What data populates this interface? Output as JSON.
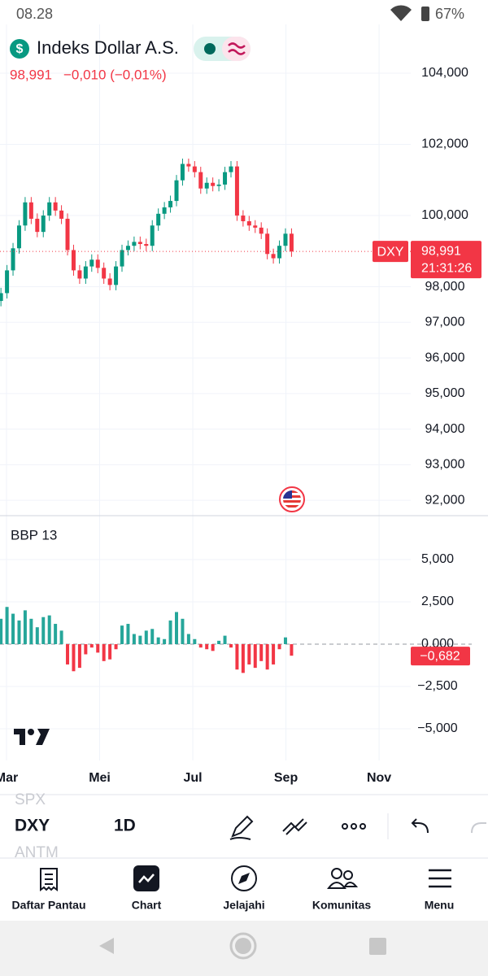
{
  "status_bar": {
    "time": "08.28",
    "battery": "67%"
  },
  "header": {
    "logo_symbol": "$",
    "title": "Indeks Dollar A.S.",
    "price": "98,991",
    "change": "−0,010 (−0,01%)"
  },
  "chart_data": [
    {
      "type": "candlestick",
      "symbol": "DXY",
      "last_price_label": "98,991",
      "countdown": "21:31:26",
      "up_color": "#089981",
      "down_color": "#f23645",
      "grid": true,
      "x": [
        2.88,
        3.01,
        3.14,
        3.27,
        3.4,
        3.53,
        3.66,
        3.79,
        3.92,
        4.05,
        4.18,
        4.31,
        4.44,
        4.57,
        4.7,
        4.83,
        4.96,
        5.09,
        5.22,
        5.35,
        5.48,
        5.61,
        5.74,
        5.87,
        6.0,
        6.13,
        6.26,
        6.39,
        6.52,
        6.65,
        6.78,
        6.91,
        7.04,
        7.17,
        7.3,
        7.43,
        7.56,
        7.69,
        7.82,
        7.95,
        8.08,
        8.21,
        8.34,
        8.47,
        8.6,
        8.73,
        8.86,
        8.99,
        9.12
      ],
      "open": [
        97.6,
        97.82,
        98.46,
        99.08,
        99.72,
        100.37,
        99.91,
        99.54,
        100.0,
        100.37,
        100.14,
        99.91,
        99.03,
        98.46,
        98.23,
        98.57,
        98.76,
        98.53,
        98.23,
        98.05,
        98.57,
        99.03,
        99.15,
        99.26,
        99.2,
        99.15,
        99.72,
        100.05,
        100.23,
        100.41,
        100.99,
        101.45,
        101.38,
        101.22,
        100.76,
        100.92,
        100.83,
        100.87,
        101.22,
        101.38,
        100.0,
        99.84,
        99.72,
        99.66,
        99.49,
        98.92,
        98.8,
        99.15,
        99.49
      ],
      "high": [
        97.97,
        98.61,
        99.23,
        99.87,
        100.52,
        100.52,
        100.06,
        100.15,
        100.52,
        100.52,
        100.29,
        100.06,
        99.18,
        98.61,
        98.72,
        98.91,
        98.91,
        98.68,
        98.38,
        98.72,
        99.18,
        99.3,
        99.41,
        99.41,
        99.35,
        99.87,
        100.2,
        100.38,
        100.56,
        101.14,
        101.6,
        101.6,
        101.53,
        101.37,
        101.07,
        101.07,
        101.02,
        101.37,
        101.53,
        101.53,
        100.15,
        99.99,
        99.87,
        99.81,
        99.64,
        99.07,
        99.3,
        99.64,
        99.64
      ],
      "low": [
        97.45,
        97.67,
        98.31,
        98.93,
        99.57,
        99.76,
        99.39,
        99.39,
        99.85,
        99.99,
        99.76,
        98.88,
        98.31,
        98.08,
        98.08,
        98.42,
        98.38,
        98.08,
        97.9,
        97.9,
        98.42,
        98.88,
        99.0,
        99.05,
        99.0,
        99.0,
        99.57,
        99.9,
        100.08,
        100.26,
        100.84,
        101.23,
        101.07,
        100.61,
        100.61,
        100.68,
        100.68,
        100.72,
        101.07,
        99.85,
        99.69,
        99.57,
        99.51,
        99.34,
        98.77,
        98.65,
        98.65,
        99.0,
        98.84
      ],
      "close": [
        97.82,
        98.46,
        99.08,
        99.72,
        100.37,
        99.91,
        99.54,
        100.0,
        100.37,
        100.14,
        99.91,
        99.03,
        98.46,
        98.23,
        98.57,
        98.76,
        98.53,
        98.23,
        98.05,
        98.57,
        99.03,
        99.15,
        99.26,
        99.2,
        99.15,
        99.72,
        100.05,
        100.23,
        100.41,
        100.99,
        101.45,
        101.38,
        101.22,
        100.76,
        100.92,
        100.83,
        100.87,
        101.22,
        101.38,
        100.0,
        99.84,
        99.72,
        99.66,
        99.49,
        98.92,
        98.8,
        99.15,
        99.49,
        98.991
      ],
      "xlim": [
        2.86,
        11.68
      ],
      "xticks": [
        {
          "value": 3,
          "label": "Mar"
        },
        {
          "value": 5,
          "label": "Mei"
        },
        {
          "value": 7,
          "label": "Jul"
        },
        {
          "value": 9,
          "label": "Sep"
        },
        {
          "value": 11,
          "label": "Nov"
        }
      ],
      "ylim": [
        91.66,
        105.37
      ],
      "yticks": [
        {
          "value": 104,
          "label": "104,000"
        },
        {
          "value": 102,
          "label": "102,000"
        },
        {
          "value": 100,
          "label": "100,000"
        },
        {
          "value": 98,
          "label": "98,000"
        },
        {
          "value": 97,
          "label": "97,000"
        },
        {
          "value": 96,
          "label": "96,000"
        },
        {
          "value": 95,
          "label": "95,000"
        },
        {
          "value": 94,
          "label": "94,000"
        },
        {
          "value": 93,
          "label": "93,000"
        },
        {
          "value": 92,
          "label": "92,000"
        }
      ]
    },
    {
      "type": "bar",
      "title": "BBP 13",
      "up_color": "#26a69a",
      "down_color": "#f23645",
      "last_value_label": "−0,682",
      "x": [
        2.88,
        3.01,
        3.14,
        3.27,
        3.4,
        3.53,
        3.66,
        3.79,
        3.92,
        4.05,
        4.18,
        4.31,
        4.44,
        4.57,
        4.7,
        4.83,
        4.96,
        5.09,
        5.22,
        5.35,
        5.48,
        5.61,
        5.74,
        5.87,
        6.0,
        6.13,
        6.26,
        6.39,
        6.52,
        6.65,
        6.78,
        6.91,
        7.04,
        7.17,
        7.3,
        7.43,
        7.56,
        7.69,
        7.82,
        7.95,
        8.08,
        8.21,
        8.34,
        8.47,
        8.6,
        8.73,
        8.86,
        8.99,
        9.12
      ],
      "values": [
        1.5,
        2.2,
        1.8,
        1.4,
        2.0,
        1.5,
        1.0,
        1.6,
        1.7,
        1.2,
        0.8,
        -1.2,
        -1.6,
        -1.4,
        -0.6,
        -0.2,
        -0.5,
        -1.0,
        -0.9,
        -0.3,
        1.1,
        1.2,
        0.6,
        0.5,
        0.8,
        0.9,
        0.4,
        0.3,
        1.4,
        1.9,
        1.5,
        0.6,
        0.3,
        -0.2,
        -0.3,
        -0.4,
        0.2,
        0.5,
        -0.2,
        -1.5,
        -1.7,
        -1.2,
        -1.4,
        -1.0,
        -1.5,
        -1.2,
        -0.3,
        0.4,
        -0.682
      ],
      "xlim": [
        2.86,
        11.68
      ],
      "ylim": [
        -6.875,
        7.5
      ],
      "yticks": [
        {
          "value": 5,
          "label": "5,000"
        },
        {
          "value": 2.5,
          "label": "2,500"
        },
        {
          "value": 0,
          "label": "0,000"
        },
        {
          "value": -2.5,
          "label": "−2,500"
        },
        {
          "value": -5,
          "label": "−5,000"
        }
      ]
    }
  ],
  "toolbar": {
    "symbol_prev": "SPX",
    "symbol": "DXY",
    "symbol_next": "ANTM",
    "interval": "1D"
  },
  "nav": {
    "items": [
      "Daftar Pantau",
      "Chart",
      "Jelajahi",
      "Komunitas",
      "Menu"
    ]
  }
}
